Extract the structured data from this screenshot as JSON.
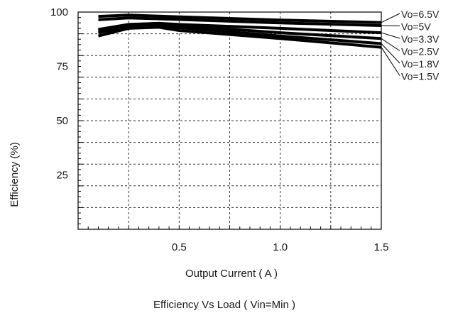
{
  "chart_data": {
    "type": "line",
    "title": "Efficiency  Vs Load ( Vin=Min )",
    "xlabel": "Output Current ( A )",
    "ylabel": "Efficiency (%)",
    "xlim": [
      0,
      1.5
    ],
    "ylim": [
      0,
      100
    ],
    "x_ticks": [
      {
        "value": 0.5,
        "label": "0.5"
      },
      {
        "value": 1.0,
        "label": "1.0"
      },
      {
        "value": 1.5,
        "label": "1.5"
      }
    ],
    "y_ticks": [
      {
        "value": 100,
        "label": "100"
      },
      {
        "value": 75,
        "label": "75"
      },
      {
        "value": 50,
        "label": "50"
      },
      {
        "value": 25,
        "label": "25"
      }
    ],
    "grid": true,
    "x_grid_step": 0.25,
    "y_grid_step": 10,
    "legend_placement": "right",
    "line_color": "#000000",
    "series": [
      {
        "name": "Vo=6.5V",
        "x": [
          0.1,
          0.25,
          0.5,
          1.0,
          1.5
        ],
        "y": [
          98,
          98.6,
          97.8,
          96.3,
          95.2
        ]
      },
      {
        "name": "Vo=5V",
        "x": [
          0.1,
          0.25,
          0.5,
          1.0,
          1.5
        ],
        "y": [
          96.5,
          97.3,
          96.6,
          95,
          93.8
        ]
      },
      {
        "name": "Vo=3.3V",
        "x": [
          0.1,
          0.25,
          0.4,
          0.5,
          1.0,
          1.5
        ],
        "y": [
          92,
          94.3,
          94.8,
          94.3,
          92.5,
          90.5
        ]
      },
      {
        "name": "Vo=2.5V",
        "x": [
          0.1,
          0.25,
          0.4,
          0.5,
          1.0,
          1.5
        ],
        "y": [
          91.5,
          94.2,
          94.8,
          93.8,
          90.5,
          87.8
        ]
      },
      {
        "name": "Vo=1.8V",
        "x": [
          0.1,
          0.25,
          0.4,
          0.5,
          1.0,
          1.5
        ],
        "y": [
          90.5,
          93.3,
          93.8,
          92.8,
          89,
          85.5
        ]
      },
      {
        "name": "Vo=1.5V",
        "x": [
          0.1,
          0.25,
          0.4,
          0.5,
          1.0,
          1.5
        ],
        "y": [
          89,
          92.5,
          93,
          91.5,
          87.8,
          83.8
        ]
      }
    ]
  }
}
